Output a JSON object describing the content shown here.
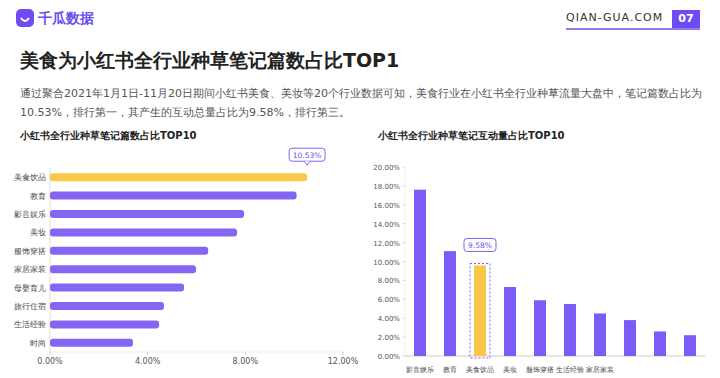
{
  "header": {
    "logo": "千瓜数据",
    "site": "QIAN-GUA.COM",
    "page": "07"
  },
  "title": "美食为小红书全行业种草笔记篇数占比TOP1",
  "description": "通过聚合2021年1月1日-11月20日期间小红书美食、美妆等20个行业数据可知，美食行业在小红书全行业种草流量大盘中，笔记篇数占比为10.53%，排行第一，其产生的互动总量占比为9.58%，排行第三。",
  "chart_data": [
    {
      "type": "bar",
      "orientation": "horizontal",
      "title": "小红书全行业种草笔记篇数占比TOP10",
      "categories": [
        "美食饮品",
        "教育",
        "影音娱乐",
        "美妆",
        "服饰穿搭",
        "家居家装",
        "母婴育儿",
        "旅行住宿",
        "生活经验",
        "时尚"
      ],
      "values": [
        10.53,
        10.1,
        7.95,
        7.66,
        6.48,
        5.98,
        5.49,
        4.67,
        4.47,
        3.4
      ],
      "value_labels": [
        "10.53%",
        null,
        null,
        null,
        null,
        null,
        null,
        null,
        null,
        null
      ],
      "colors": [
        "#f9c846",
        "#8466f3",
        "#8466f3",
        "#8466f3",
        "#8466f3",
        "#8466f3",
        "#8466f3",
        "#8466f3",
        "#8466f3",
        "#8466f3"
      ],
      "xlim": [
        0,
        12
      ],
      "xticks": [
        {
          "value": 0,
          "label": "0.00%"
        },
        {
          "value": 4,
          "label": "4.00%"
        },
        {
          "value": 8,
          "label": "8.00%"
        },
        {
          "value": 12,
          "label": "12.00%"
        }
      ],
      "grid": false
    },
    {
      "type": "bar",
      "title": "小红书全行业种草笔记互动量占比TOP10",
      "categories": [
        "影音娱乐",
        "教育",
        "美食饮品",
        "美妆",
        "服饰穿搭",
        "生活经验",
        "家居家装",
        null,
        null,
        null
      ],
      "values": [
        17.6,
        11.1,
        9.58,
        7.3,
        5.9,
        5.5,
        4.5,
        3.8,
        2.6,
        2.2
      ],
      "value_labels": [
        null,
        null,
        "9.58%",
        null,
        null,
        null,
        null,
        null,
        null,
        null
      ],
      "colors": [
        "#7b5cf5",
        "#7b5cf5",
        "#f9c846",
        "#7b5cf5",
        "#7b5cf5",
        "#7b5cf5",
        "#7b5cf5",
        "#7b5cf5",
        "#7b5cf5",
        "#7b5cf5"
      ],
      "ylim": [
        0,
        20
      ],
      "yticks": [
        {
          "value": 0,
          "label": "0.00%"
        },
        {
          "value": 2,
          "label": "2.00%"
        },
        {
          "value": 4,
          "label": "4.00%"
        },
        {
          "value": 6,
          "label": "6.00%"
        },
        {
          "value": 8,
          "label": "8.00%"
        },
        {
          "value": 10,
          "label": "10.00%"
        },
        {
          "value": 12,
          "label": "12.00%"
        },
        {
          "value": 14,
          "label": "14.00%"
        },
        {
          "value": 16,
          "label": "16.00%"
        },
        {
          "value": 18,
          "label": "18.00%"
        },
        {
          "value": 20,
          "label": "20.00%"
        }
      ],
      "grid": false
    }
  ]
}
